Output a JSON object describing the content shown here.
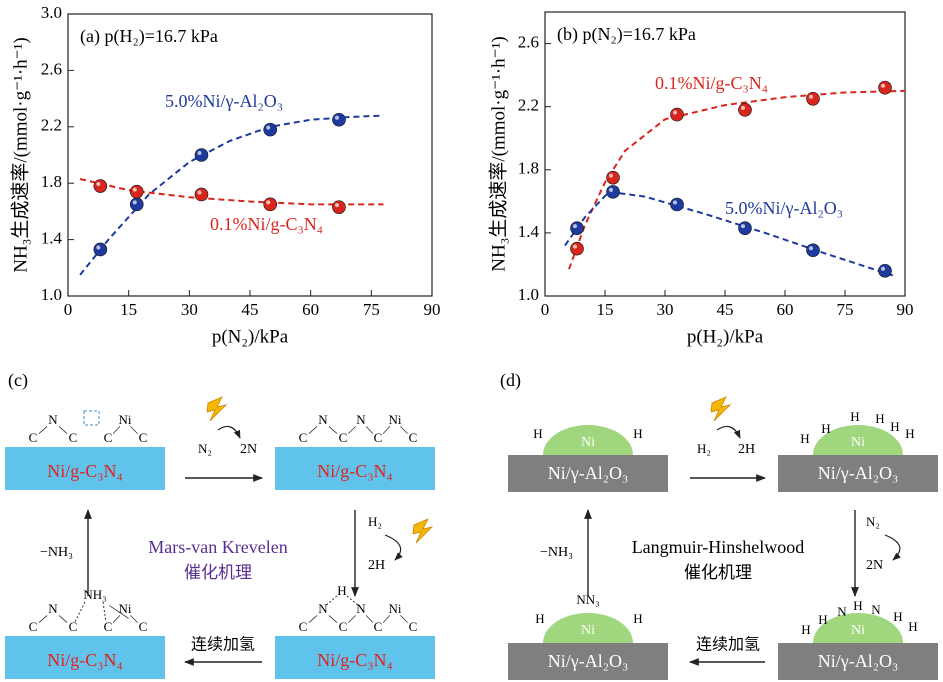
{
  "chart_data": [
    {
      "type": "scatter",
      "title": "(a) p(H₂)=16.7 kPa",
      "x_label": "p(N₂)/kPa",
      "y_label": "NH₃生成速率/(mmol·g⁻¹·h⁻¹)",
      "xlim": [
        0,
        90
      ],
      "xticks": [
        0,
        15,
        30,
        45,
        60,
        75,
        90
      ],
      "ylim": [
        1,
        3
      ],
      "yticks": [
        {
          "value": 1,
          "label": "1.0"
        },
        1.4,
        1.8,
        2.2,
        2.6,
        {
          "value": 3,
          "label": "3.0"
        }
      ],
      "series": [
        {
          "name": "5.0%Ni/γ-Al₂O₃",
          "color": "#1f3a9e",
          "x": [
            8,
            17,
            33,
            50,
            67
          ],
          "values": [
            1.33,
            1.65,
            2.0,
            2.18,
            2.25
          ],
          "fit": {
            "x": [
              3,
              10,
              20,
              30,
              40,
              50,
              60,
              70,
              78
            ],
            "values": [
              1.15,
              1.4,
              1.72,
              1.95,
              2.1,
              2.2,
              2.25,
              2.27,
              2.28
            ]
          }
        },
        {
          "name": "0.1%Ni/g-C₃N₄",
          "color": "#d9261c",
          "x": [
            8,
            17,
            33,
            50,
            67
          ],
          "values": [
            1.78,
            1.74,
            1.72,
            1.65,
            1.63
          ],
          "fit": {
            "x": [
              3,
              15,
              30,
              45,
              60,
              78
            ],
            "values": [
              1.83,
              1.75,
              1.7,
              1.67,
              1.65,
              1.65
            ]
          }
        }
      ]
    },
    {
      "type": "scatter",
      "title": "(b) p(N₂)=16.7 kPa",
      "x_label": "p(H₂)/kPa",
      "y_label": "NH₃生成速率/(mmol·g⁻¹·h⁻¹)",
      "xlim": [
        0,
        90
      ],
      "xticks": [
        0,
        15,
        30,
        45,
        60,
        75,
        90
      ],
      "ylim": [
        1,
        2.8
      ],
      "yticks": [
        {
          "value": 1,
          "label": "1.0"
        },
        1.4,
        1.8,
        2.2,
        2.6
      ],
      "series": [
        {
          "name": "0.1%Ni/g-C₃N₄",
          "color": "#d9261c",
          "x": [
            8,
            17,
            33,
            50,
            67,
            85
          ],
          "values": [
            1.3,
            1.75,
            2.15,
            2.18,
            2.25,
            2.32
          ],
          "fit": {
            "x": [
              6,
              10,
              15,
              20,
              30,
              45,
              60,
              75,
              90
            ],
            "values": [
              1.17,
              1.45,
              1.72,
              1.92,
              2.12,
              2.21,
              2.26,
              2.29,
              2.3
            ]
          }
        },
        {
          "name": "5.0%Ni/γ-Al₂O₃",
          "color": "#1f3a9e",
          "x": [
            8,
            17,
            33,
            50,
            67,
            85
          ],
          "values": [
            1.43,
            1.66,
            1.58,
            1.43,
            1.29,
            1.16
          ],
          "fit": {
            "x": [
              5,
              10,
              16,
              25,
              40,
              55,
              70,
              87
            ],
            "values": [
              1.32,
              1.5,
              1.66,
              1.63,
              1.52,
              1.4,
              1.27,
              1.13
            ]
          }
        }
      ]
    }
  ],
  "diagrams": [
    {
      "label": "(c)",
      "mechanism": [
        "Mars-van Krevelen",
        "催化机理"
      ],
      "states": [
        {
          "substrate": "Ni/g-C₃N₄",
          "atoms": [
            "C",
            "N",
            "C",
            "C",
            "Ni",
            "C"
          ]
        },
        {
          "substrate": "Ni/g-C₃N₄",
          "atoms": [
            "C",
            "N",
            "C",
            "N",
            "C",
            "Ni",
            "C"
          ]
        },
        {
          "substrate": "Ni/g-C₃N₄",
          "atoms": [
            "C",
            "N",
            "C",
            "C",
            "Ni",
            "C",
            "NH₃"
          ]
        },
        {
          "substrate": "Ni/g-C₃N₄",
          "atoms": [
            "C",
            "N",
            "C",
            "N",
            "C",
            "Ni",
            "C",
            "H"
          ]
        }
      ],
      "steps": [
        [
          "N₂",
          "2N"
        ],
        [
          "H₂",
          "2H"
        ],
        [
          "连续加氢"
        ],
        [
          "−NH₃"
        ]
      ]
    },
    {
      "label": "(d)",
      "mechanism": [
        "Langmuir-Hinshelwood",
        "催化机理"
      ],
      "states": [
        {
          "substrate": "Ni/γ-Al₂O₃",
          "particle": "Ni",
          "atoms": [
            "H",
            "H"
          ]
        },
        {
          "substrate": "Ni/γ-Al₂O₃",
          "particle": "Ni",
          "atoms": [
            "H",
            "H",
            "H",
            "H",
            "H",
            "H"
          ]
        },
        {
          "substrate": "Ni/γ-Al₂O₃",
          "particle": "Ni",
          "atoms": [
            "H",
            "NN₃",
            "H"
          ]
        },
        {
          "substrate": "Ni/γ-Al₂O₃",
          "particle": "Ni",
          "atoms": [
            "H",
            "H",
            "N",
            "H",
            "N",
            "H",
            "H"
          ]
        }
      ],
      "steps": [
        [
          "H₂",
          "2H"
        ],
        [
          "N₂",
          "2N"
        ],
        [
          "连续加氢"
        ],
        [
          "−NH₃"
        ]
      ]
    }
  ]
}
